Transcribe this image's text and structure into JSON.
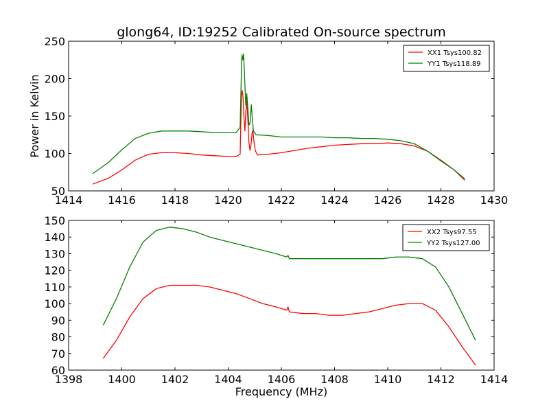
{
  "chart_data": [
    {
      "type": "line",
      "title": "glong64, ID:19252 Calibrated On-source spectrum",
      "xlabel": "",
      "ylabel": "Power in Kelvin",
      "xlim": [
        1414,
        1430
      ],
      "ylim": [
        50,
        250
      ],
      "xticks": [
        1414,
        1416,
        1418,
        1420,
        1422,
        1424,
        1426,
        1428,
        1430
      ],
      "yticks": [
        50,
        100,
        150,
        200,
        250
      ],
      "grid": false,
      "legend_position": "top-right",
      "series": [
        {
          "name": "XX1 Tsys100.82",
          "color": "#ff0000",
          "points": [
            [
              1414.9,
              59
            ],
            [
              1415.5,
              67
            ],
            [
              1416.0,
              78
            ],
            [
              1416.5,
              91
            ],
            [
              1417.0,
              99
            ],
            [
              1417.5,
              101
            ],
            [
              1418.0,
              101
            ],
            [
              1418.5,
              100
            ],
            [
              1419.0,
              98
            ],
            [
              1419.5,
              97
            ],
            [
              1420.0,
              96
            ],
            [
              1420.3,
              96
            ],
            [
              1420.45,
              99
            ],
            [
              1420.5,
              178
            ],
            [
              1420.53,
              184
            ],
            [
              1420.56,
              175
            ],
            [
              1420.6,
              145
            ],
            [
              1420.63,
              130
            ],
            [
              1420.66,
              155
            ],
            [
              1420.7,
              170
            ],
            [
              1420.74,
              145
            ],
            [
              1420.78,
              115
            ],
            [
              1420.82,
              104
            ],
            [
              1420.86,
              112
            ],
            [
              1420.9,
              128
            ],
            [
              1420.93,
              131
            ],
            [
              1420.97,
              115
            ],
            [
              1421.02,
              104
            ],
            [
              1421.1,
              98
            ],
            [
              1421.5,
              99
            ],
            [
              1422.0,
              101
            ],
            [
              1422.5,
              104
            ],
            [
              1423.0,
              107
            ],
            [
              1423.5,
              109
            ],
            [
              1424.0,
              111
            ],
            [
              1424.5,
              112
            ],
            [
              1425.0,
              113
            ],
            [
              1425.5,
              113
            ],
            [
              1426.0,
              114
            ],
            [
              1426.5,
              113
            ],
            [
              1427.0,
              110
            ],
            [
              1427.5,
              103
            ],
            [
              1428.0,
              91
            ],
            [
              1428.5,
              78
            ],
            [
              1428.9,
              64
            ]
          ]
        },
        {
          "name": "YY1 Tsys118.89",
          "color": "#008000",
          "points": [
            [
              1414.9,
              73
            ],
            [
              1415.5,
              88
            ],
            [
              1416.0,
              105
            ],
            [
              1416.5,
              120
            ],
            [
              1417.0,
              127
            ],
            [
              1417.5,
              130
            ],
            [
              1418.0,
              130
            ],
            [
              1418.5,
              130
            ],
            [
              1419.0,
              129
            ],
            [
              1419.5,
              128
            ],
            [
              1420.0,
              128
            ],
            [
              1420.3,
              128
            ],
            [
              1420.45,
              135
            ],
            [
              1420.5,
              215
            ],
            [
              1420.52,
              232
            ],
            [
              1420.55,
              225
            ],
            [
              1420.58,
              233
            ],
            [
              1420.62,
              200
            ],
            [
              1420.66,
              165
            ],
            [
              1420.7,
              180
            ],
            [
              1420.74,
              160
            ],
            [
              1420.78,
              138
            ],
            [
              1420.82,
              140
            ],
            [
              1420.87,
              165
            ],
            [
              1420.9,
              150
            ],
            [
              1420.95,
              130
            ],
            [
              1421.05,
              125
            ],
            [
              1421.5,
              124
            ],
            [
              1422.0,
              122
            ],
            [
              1422.5,
              122
            ],
            [
              1423.0,
              122
            ],
            [
              1423.5,
              122
            ],
            [
              1424.0,
              121
            ],
            [
              1424.5,
              121
            ],
            [
              1425.0,
              120
            ],
            [
              1425.5,
              120
            ],
            [
              1426.0,
              119
            ],
            [
              1426.5,
              117
            ],
            [
              1427.0,
              113
            ],
            [
              1427.5,
              103
            ],
            [
              1428.0,
              90
            ],
            [
              1428.5,
              78
            ],
            [
              1428.9,
              66
            ]
          ]
        }
      ]
    },
    {
      "type": "line",
      "title": "",
      "xlabel": "Frequency (MHz)",
      "ylabel": "",
      "xlim": [
        1398,
        1414
      ],
      "ylim": [
        60,
        150
      ],
      "xticks": [
        1398,
        1400,
        1402,
        1404,
        1406,
        1408,
        1410,
        1412,
        1414
      ],
      "yticks": [
        60,
        70,
        80,
        90,
        100,
        110,
        120,
        130,
        140,
        150
      ],
      "grid": false,
      "legend_position": "top-right",
      "series": [
        {
          "name": "XX2 Tsys97.55",
          "color": "#ff0000",
          "points": [
            [
              1399.3,
              67
            ],
            [
              1399.8,
              78
            ],
            [
              1400.3,
              92
            ],
            [
              1400.8,
              103
            ],
            [
              1401.3,
              109
            ],
            [
              1401.8,
              111
            ],
            [
              1402.3,
              111
            ],
            [
              1402.8,
              111
            ],
            [
              1403.3,
              110
            ],
            [
              1403.8,
              108
            ],
            [
              1404.3,
              106
            ],
            [
              1404.8,
              103
            ],
            [
              1405.3,
              100
            ],
            [
              1405.8,
              98
            ],
            [
              1406.2,
              96
            ],
            [
              1406.25,
              98
            ],
            [
              1406.3,
              95
            ],
            [
              1406.8,
              94
            ],
            [
              1407.3,
              94
            ],
            [
              1407.8,
              93
            ],
            [
              1408.3,
              93
            ],
            [
              1408.8,
              94
            ],
            [
              1409.3,
              95
            ],
            [
              1409.8,
              97
            ],
            [
              1410.3,
              99
            ],
            [
              1410.8,
              100
            ],
            [
              1411.3,
              100
            ],
            [
              1411.8,
              96
            ],
            [
              1412.3,
              86
            ],
            [
              1412.8,
              74
            ],
            [
              1413.3,
              63
            ]
          ]
        },
        {
          "name": "YY2 Tsys127.00",
          "color": "#008000",
          "points": [
            [
              1399.3,
              87
            ],
            [
              1399.8,
              103
            ],
            [
              1400.3,
              122
            ],
            [
              1400.8,
              137
            ],
            [
              1401.3,
              144
            ],
            [
              1401.8,
              146
            ],
            [
              1402.3,
              145
            ],
            [
              1402.8,
              143
            ],
            [
              1403.3,
              140
            ],
            [
              1403.8,
              138
            ],
            [
              1404.3,
              136
            ],
            [
              1404.8,
              134
            ],
            [
              1405.3,
              132
            ],
            [
              1405.8,
              130
            ],
            [
              1406.2,
              128
            ],
            [
              1406.25,
              129
            ],
            [
              1406.3,
              127
            ],
            [
              1406.8,
              127
            ],
            [
              1407.3,
              127
            ],
            [
              1407.8,
              127
            ],
            [
              1408.3,
              127
            ],
            [
              1408.8,
              127
            ],
            [
              1409.3,
              127
            ],
            [
              1409.8,
              127
            ],
            [
              1410.3,
              128
            ],
            [
              1410.8,
              128
            ],
            [
              1411.3,
              127
            ],
            [
              1411.8,
              122
            ],
            [
              1412.3,
              110
            ],
            [
              1412.8,
              94
            ],
            [
              1413.3,
              78
            ]
          ]
        }
      ]
    }
  ]
}
